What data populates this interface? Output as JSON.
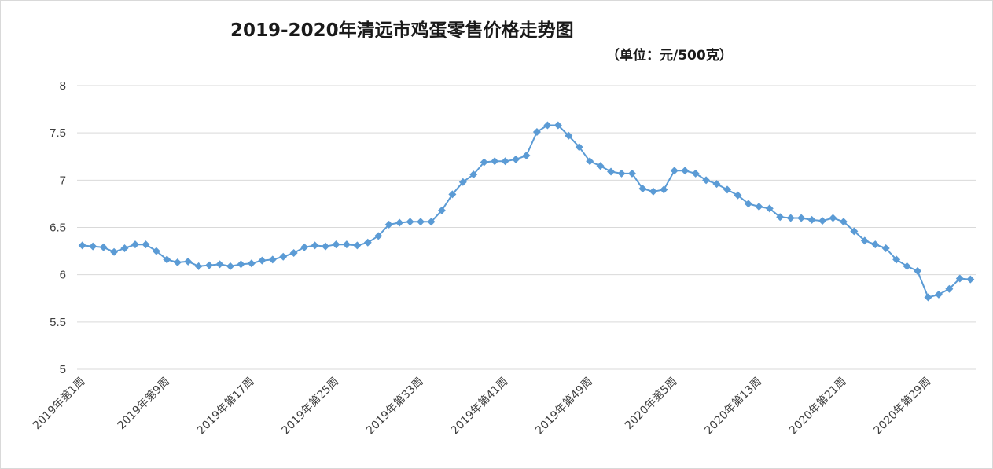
{
  "chart_data": {
    "type": "line",
    "title": "2019-2020年清远市鸡蛋零售价格走势图",
    "subtitle": "（单位：元/500克）",
    "ylim": [
      5,
      8
    ],
    "yticks": [
      "5",
      "5.5",
      "6",
      "6.5",
      "7",
      "7.5",
      "8"
    ],
    "grid": true,
    "legend": "none",
    "marker": "diamond",
    "colors": {
      "series": "#5b9bd5",
      "grid": "#d9d9d9",
      "text": "#404040"
    },
    "x_tick_labels": [
      "2019年第1周",
      "2019年第9周",
      "2019年第17周",
      "2019年第25周",
      "2019年第33周",
      "2019年第41周",
      "2019年第49周",
      "2020年第5周",
      "2020年第13周",
      "2020年第21周",
      "2020年第29周"
    ],
    "x_tick_every": 8,
    "series": [
      {
        "values": [
          6.31,
          6.3,
          6.29,
          6.24,
          6.28,
          6.32,
          6.32,
          6.25,
          6.16,
          6.13,
          6.14,
          6.09,
          6.1,
          6.11,
          6.09,
          6.11,
          6.12,
          6.15,
          6.16,
          6.19,
          6.23,
          6.29,
          6.31,
          6.3,
          6.32,
          6.32,
          6.31,
          6.34,
          6.41,
          6.53,
          6.55,
          6.56,
          6.56,
          6.56,
          6.68,
          6.85,
          6.98,
          7.06,
          7.19,
          7.2,
          7.2,
          7.22,
          7.26,
          7.51,
          7.58,
          7.58,
          7.47,
          7.35,
          7.2,
          7.15,
          7.09,
          7.07,
          7.07,
          6.91,
          6.88,
          6.9,
          7.1,
          7.1,
          7.07,
          7.0,
          6.96,
          6.9,
          6.84,
          6.75,
          6.72,
          6.7,
          6.61,
          6.6,
          6.6,
          6.58,
          6.57,
          6.6,
          6.56,
          6.46,
          6.36,
          6.32,
          6.28,
          6.16,
          6.09,
          6.04,
          5.76,
          5.79,
          5.85,
          5.96,
          5.95
        ]
      }
    ]
  }
}
